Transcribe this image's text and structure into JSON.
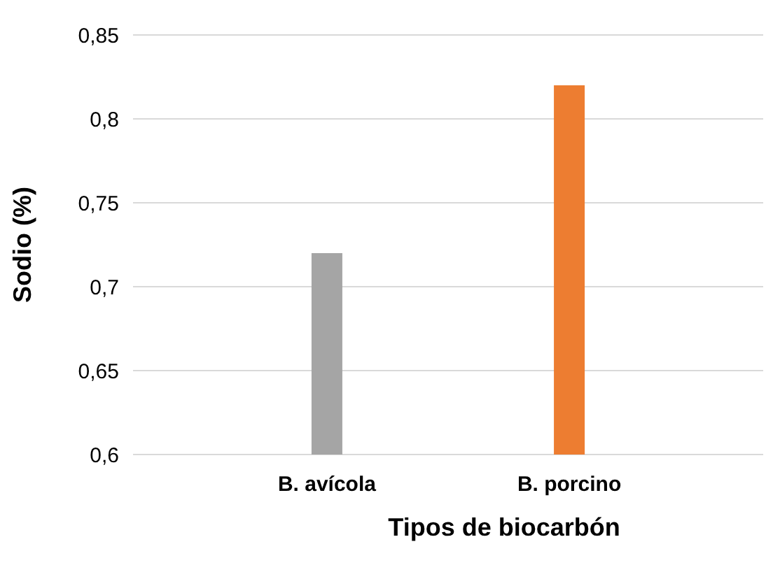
{
  "chart_data": {
    "type": "bar",
    "xlabel": "Tipos de biocarbón",
    "ylabel": "Sodio (%)",
    "categories": [
      "B. avícola",
      "B. porcino"
    ],
    "values": [
      0.72,
      0.82
    ],
    "colors": [
      "#a5a5a5",
      "#ed7d31"
    ],
    "ylim": [
      0.6,
      0.85
    ],
    "yticks": [
      {
        "value": 0.6,
        "label": "0,6"
      },
      {
        "value": 0.65,
        "label": "0,65"
      },
      {
        "value": 0.7,
        "label": "0,7"
      },
      {
        "value": 0.75,
        "label": "0,75"
      },
      {
        "value": 0.8,
        "label": "0,8"
      },
      {
        "value": 0.85,
        "label": "0,85"
      }
    ],
    "grid": "y"
  }
}
